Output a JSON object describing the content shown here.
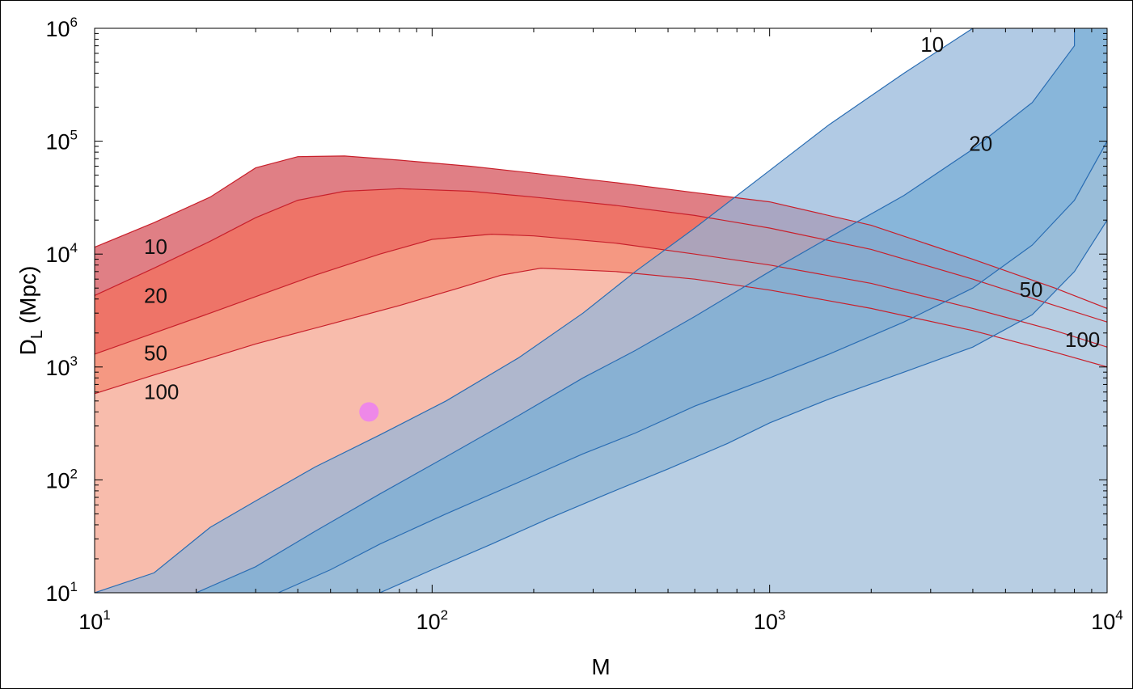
{
  "chart_data": {
    "type": "area",
    "title": "",
    "xlabel": "M",
    "ylabel": "D_L (Mpc)",
    "xscale": "log",
    "yscale": "log",
    "xlim": [
      10,
      10000
    ],
    "ylim": [
      10,
      1000000
    ],
    "x_ticks": [
      {
        "base": "10",
        "exp": "1",
        "value": 10
      },
      {
        "base": "10",
        "exp": "2",
        "value": 100
      },
      {
        "base": "10",
        "exp": "3",
        "value": 1000
      },
      {
        "base": "10",
        "exp": "4",
        "value": 10000
      }
    ],
    "y_ticks": [
      {
        "base": "10",
        "exp": "1",
        "value": 10
      },
      {
        "base": "10",
        "exp": "2",
        "value": 100
      },
      {
        "base": "10",
        "exp": "3",
        "value": 1000
      },
      {
        "base": "10",
        "exp": "4",
        "value": 10000
      },
      {
        "base": "10",
        "exp": "5",
        "value": 100000
      },
      {
        "base": "10",
        "exp": "6",
        "value": 1000000
      }
    ],
    "grid": false,
    "legend": "none",
    "series": [
      {
        "group": "red",
        "label": "10",
        "label_at": [
          14,
          10000
        ],
        "color": "#e07f85",
        "points": [
          [
            10,
            11500
          ],
          [
            15,
            19000
          ],
          [
            22,
            32000
          ],
          [
            30,
            58000
          ],
          [
            40,
            73000
          ],
          [
            55,
            74000
          ],
          [
            80,
            68000
          ],
          [
            130,
            60000
          ],
          [
            200,
            52000
          ],
          [
            350,
            43000
          ],
          [
            600,
            35000
          ],
          [
            1000,
            29000
          ],
          [
            2000,
            18000
          ],
          [
            4000,
            9000
          ],
          [
            7000,
            5000
          ],
          [
            10000,
            3300
          ]
        ]
      },
      {
        "group": "red",
        "label": "20",
        "label_at": [
          14,
          3700
        ],
        "color": "#ee7468",
        "points": [
          [
            10,
            4300
          ],
          [
            15,
            7500
          ],
          [
            22,
            13000
          ],
          [
            30,
            21000
          ],
          [
            40,
            30000
          ],
          [
            55,
            36000
          ],
          [
            80,
            38000
          ],
          [
            130,
            36000
          ],
          [
            200,
            32000
          ],
          [
            350,
            27000
          ],
          [
            600,
            22000
          ],
          [
            1000,
            17000
          ],
          [
            2000,
            11000
          ],
          [
            4000,
            6000
          ],
          [
            7000,
            3500
          ],
          [
            10000,
            2500
          ]
        ]
      },
      {
        "group": "red",
        "label": "50",
        "label_at": [
          14,
          1150
        ],
        "color": "#f59882",
        "points": [
          [
            10,
            1300
          ],
          [
            15,
            2000
          ],
          [
            22,
            3000
          ],
          [
            30,
            4200
          ],
          [
            45,
            6500
          ],
          [
            70,
            10000
          ],
          [
            100,
            13500
          ],
          [
            150,
            15000
          ],
          [
            200,
            14500
          ],
          [
            350,
            12500
          ],
          [
            600,
            10000
          ],
          [
            1000,
            8000
          ],
          [
            2000,
            5500
          ],
          [
            4000,
            3300
          ],
          [
            7000,
            2100
          ],
          [
            10000,
            1500
          ]
        ]
      },
      {
        "group": "red",
        "label": "100",
        "label_at": [
          14,
          520
        ],
        "color": "#f8bcac",
        "points": [
          [
            10,
            580
          ],
          [
            15,
            850
          ],
          [
            22,
            1200
          ],
          [
            30,
            1600
          ],
          [
            50,
            2400
          ],
          [
            80,
            3500
          ],
          [
            120,
            5000
          ],
          [
            160,
            6500
          ],
          [
            210,
            7500
          ],
          [
            350,
            7000
          ],
          [
            600,
            6000
          ],
          [
            1000,
            4800
          ],
          [
            2000,
            3300
          ],
          [
            4000,
            2100
          ],
          [
            7000,
            1350
          ],
          [
            10000,
            1000
          ]
        ]
      },
      {
        "group": "blue",
        "label": "10",
        "label_at": [
          2800,
          620000
        ],
        "color": "#93b5d9",
        "points": [
          [
            10,
            10
          ],
          [
            15,
            15
          ],
          [
            22,
            38
          ],
          [
            30,
            65
          ],
          [
            45,
            130
          ],
          [
            70,
            250
          ],
          [
            110,
            500
          ],
          [
            180,
            1200
          ],
          [
            280,
            3000
          ],
          [
            400,
            7000
          ],
          [
            600,
            17000
          ],
          [
            1000,
            55000
          ],
          [
            1500,
            140000
          ],
          [
            2500,
            400000
          ],
          [
            4000,
            1000000
          ]
        ]
      },
      {
        "group": "blue",
        "label": "20",
        "label_at": [
          3900,
          82000
        ],
        "color": "#78afd5",
        "points": [
          [
            20,
            10
          ],
          [
            30,
            17
          ],
          [
            45,
            35
          ],
          [
            70,
            75
          ],
          [
            110,
            160
          ],
          [
            180,
            370
          ],
          [
            280,
            800
          ],
          [
            400,
            1400
          ],
          [
            600,
            2800
          ],
          [
            1000,
            7000
          ],
          [
            1500,
            14000
          ],
          [
            2500,
            33000
          ],
          [
            4000,
            85000
          ],
          [
            6000,
            220000
          ],
          [
            8000,
            700000
          ],
          [
            8001,
            1000000
          ]
        ]
      },
      {
        "group": "blue",
        "label": "50",
        "label_at": [
          5500,
          4200
        ],
        "color": "#a0bfd8",
        "points": [
          [
            35,
            10
          ],
          [
            50,
            16
          ],
          [
            70,
            27
          ],
          [
            110,
            50
          ],
          [
            180,
            95
          ],
          [
            280,
            170
          ],
          [
            400,
            260
          ],
          [
            600,
            450
          ],
          [
            1000,
            800
          ],
          [
            1500,
            1300
          ],
          [
            2500,
            2500
          ],
          [
            4000,
            5000
          ],
          [
            6000,
            12000
          ],
          [
            8000,
            30000
          ],
          [
            10000,
            100000
          ]
        ]
      },
      {
        "group": "blue",
        "label": "100",
        "label_at": [
          7500,
          1500
        ],
        "color": "#c4d6e8",
        "points": [
          [
            70,
            10
          ],
          [
            100,
            16
          ],
          [
            150,
            27
          ],
          [
            220,
            45
          ],
          [
            330,
            75
          ],
          [
            500,
            125
          ],
          [
            750,
            210
          ],
          [
            1000,
            320
          ],
          [
            1500,
            520
          ],
          [
            2500,
            900
          ],
          [
            4000,
            1500
          ],
          [
            6000,
            2900
          ],
          [
            8000,
            7000
          ],
          [
            10000,
            20000
          ]
        ]
      }
    ],
    "marker": {
      "x": 65,
      "y": 400,
      "color": "#ee88e8"
    }
  }
}
